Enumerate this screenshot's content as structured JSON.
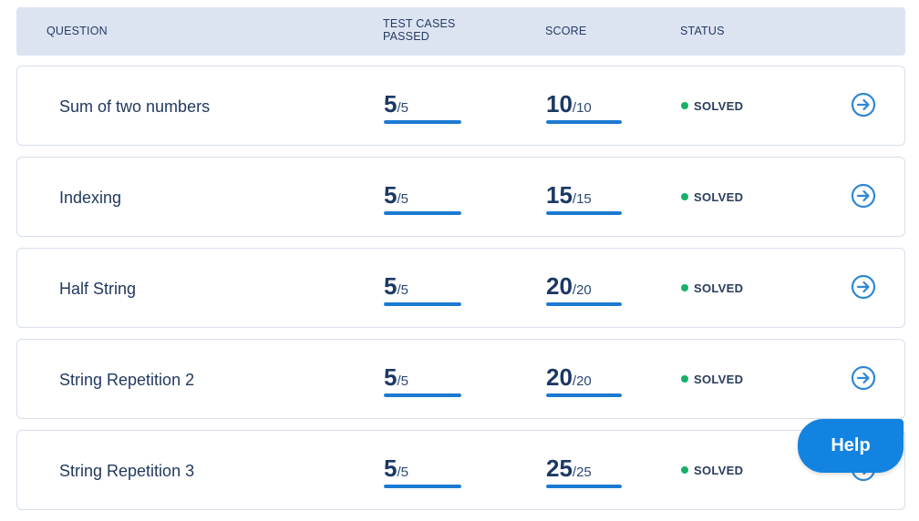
{
  "header": {
    "question": "QUESTION",
    "test_cases_line1": "TEST CASES",
    "test_cases_line2": "PASSED",
    "score": "SCORE",
    "status": "STATUS"
  },
  "rows": [
    {
      "name": "Sum of two numbers",
      "tests_passed": "5",
      "tests_total": "/5",
      "tests_fraction": 1.0,
      "score": "10",
      "score_total": "/10",
      "score_fraction": 1.0,
      "status": "SOLVED"
    },
    {
      "name": "Indexing",
      "tests_passed": "5",
      "tests_total": "/5",
      "tests_fraction": 1.0,
      "score": "15",
      "score_total": "/15",
      "score_fraction": 1.0,
      "status": "SOLVED"
    },
    {
      "name": "Half String",
      "tests_passed": "5",
      "tests_total": "/5",
      "tests_fraction": 1.0,
      "score": "20",
      "score_total": "/20",
      "score_fraction": 1.0,
      "status": "SOLVED"
    },
    {
      "name": "String Repetition 2",
      "tests_passed": "5",
      "tests_total": "/5",
      "tests_fraction": 1.0,
      "score": "20",
      "score_total": "/20",
      "score_fraction": 1.0,
      "status": "SOLVED"
    },
    {
      "name": "String Repetition 3",
      "tests_passed": "5",
      "tests_total": "/5",
      "tests_fraction": 1.0,
      "score": "25",
      "score_total": "/25",
      "score_fraction": 1.0,
      "status": "SOLVED"
    }
  ],
  "help_label": "Help",
  "colors": {
    "accent": "#1a7ad1",
    "status_solved": "#18b06a",
    "header_bg": "#dce4f2"
  },
  "icons": {
    "row_action": "arrow-right-circle-icon",
    "status": "dot-icon"
  }
}
